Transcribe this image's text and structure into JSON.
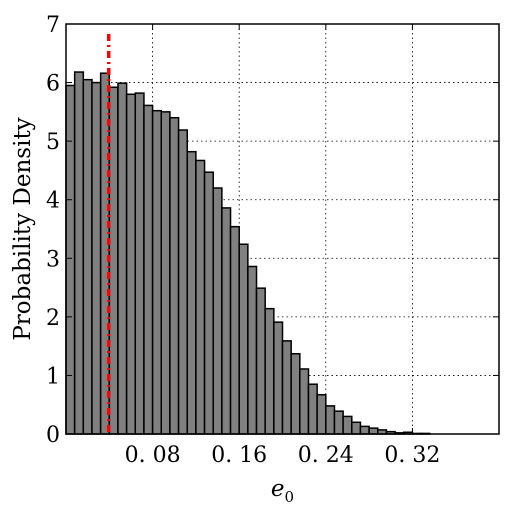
{
  "chart_data": {
    "type": "bar",
    "subtype": "histogram",
    "xlabel_base": "e",
    "xlabel_sub": "0",
    "ylabel": "Probability Density",
    "xlim": [
      0.0,
      0.4
    ],
    "ylim": [
      0,
      7
    ],
    "x_ticks": [
      0.08,
      0.16,
      0.24,
      0.32
    ],
    "x_tick_labels": [
      "0. 08",
      "0. 16",
      "0. 24",
      "0. 32"
    ],
    "y_ticks": [
      0,
      1,
      2,
      3,
      4,
      5,
      6,
      7
    ],
    "y_tick_labels": [
      "0",
      "1",
      "2",
      "3",
      "4",
      "5",
      "6",
      "7"
    ],
    "grid": true,
    "bin_width": 0.008,
    "bin_start": 0.0,
    "values": [
      5.95,
      6.18,
      6.05,
      6.0,
      6.16,
      5.92,
      5.99,
      5.8,
      5.82,
      5.61,
      5.52,
      5.5,
      5.4,
      5.19,
      4.82,
      4.67,
      4.47,
      4.2,
      3.86,
      3.54,
      3.24,
      2.86,
      2.49,
      2.14,
      1.91,
      1.59,
      1.37,
      1.11,
      0.85,
      0.67,
      0.48,
      0.39,
      0.3,
      0.2,
      0.13,
      0.1,
      0.07,
      0.04,
      0.02,
      0.03,
      0.01,
      0.01,
      0.0,
      0.0,
      0.0,
      0.0,
      0.0,
      0.0,
      0.0,
      0.0
    ],
    "bar_color": "#808080",
    "bar_edge_color": "#000000",
    "reference_line": {
      "x": 0.0395,
      "color": "#ff0000"
    }
  }
}
